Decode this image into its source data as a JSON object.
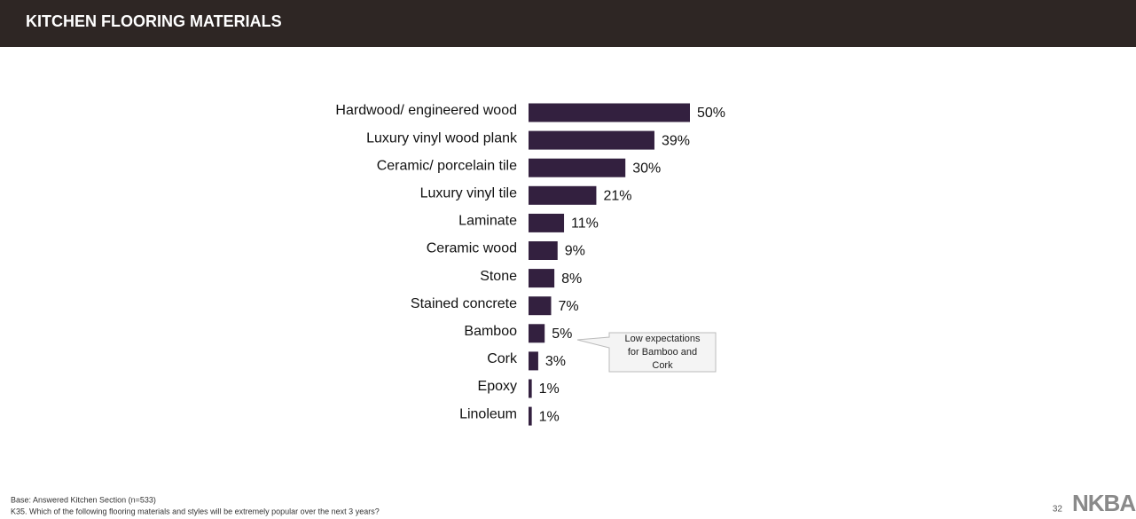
{
  "header": {
    "title": "KITCHEN FLOORING MATERIALS"
  },
  "chart_data": {
    "type": "bar",
    "orientation": "horizontal",
    "categories": [
      "Hardwood/ engineered wood",
      "Luxury vinyl wood plank",
      "Ceramic/ porcelain tile",
      "Luxury vinyl tile",
      "Laminate",
      "Ceramic wood",
      "Stone",
      "Stained concrete",
      "Bamboo",
      "Cork",
      "Epoxy",
      "Linoleum"
    ],
    "values": [
      50,
      39,
      30,
      21,
      11,
      9,
      8,
      7,
      5,
      3,
      1,
      1
    ],
    "value_labels": [
      "50%",
      "39%",
      "30%",
      "21%",
      "11%",
      "9%",
      "8%",
      "7%",
      "5%",
      "3%",
      "1%",
      "1%"
    ],
    "color": "#33203f",
    "annotation": "Low expectations for Bamboo and Cork"
  },
  "footer": {
    "base": "Base:  Answered Kitchen Section (n=533)",
    "question": "K35.  Which of the following flooring materials and styles will be extremely popular over the next 3 years?",
    "page_number": "32",
    "logo": "NKBA"
  }
}
